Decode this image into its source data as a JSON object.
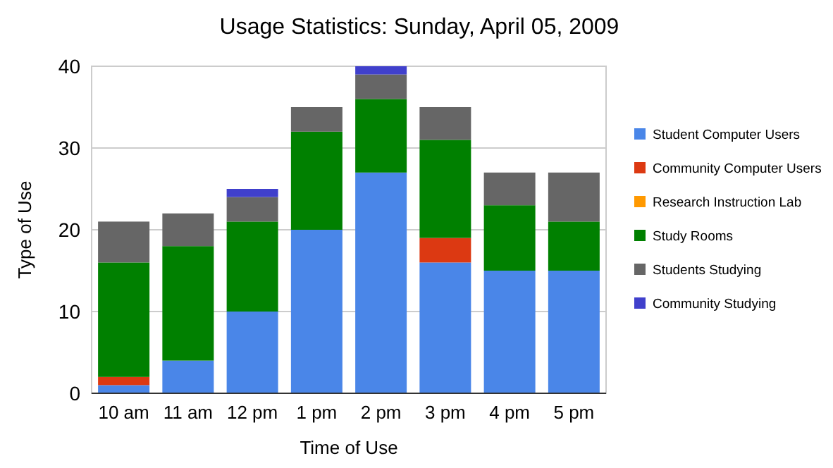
{
  "chart_data": {
    "type": "bar",
    "title": "Usage Statistics: Sunday, April 05, 2009",
    "xlabel": "Time of Use",
    "ylabel": "Type of Use",
    "categories": [
      "10 am",
      "11 am",
      "12 pm",
      "1 pm",
      "2 pm",
      "3 pm",
      "4 pm",
      "5 pm"
    ],
    "stacked": true,
    "ylim": [
      0,
      40
    ],
    "yticks": [
      0,
      10,
      20,
      30,
      40
    ],
    "grid": "y",
    "legend": "right",
    "series": [
      {
        "name": "Student Computer Users",
        "color": "#4a86e8",
        "values": [
          1,
          4,
          10,
          20,
          27,
          16,
          15,
          15
        ]
      },
      {
        "name": "Community Computer Users",
        "color": "#dc3912",
        "values": [
          1,
          0,
          0,
          0,
          0,
          3,
          0,
          0
        ]
      },
      {
        "name": "Research Instruction Lab",
        "color": "#ff9900",
        "values": [
          0,
          0,
          0,
          0,
          0,
          0,
          0,
          0
        ]
      },
      {
        "name": "Study Rooms",
        "color": "#008000",
        "values": [
          14,
          14,
          11,
          12,
          9,
          12,
          8,
          6
        ]
      },
      {
        "name": "Students Studying",
        "color": "#666666",
        "values": [
          5,
          4,
          3,
          3,
          3,
          4,
          4,
          6
        ]
      },
      {
        "name": "Community Studying",
        "color": "#4040cc",
        "values": [
          0,
          0,
          1,
          0,
          1,
          0,
          0,
          0
        ]
      }
    ]
  }
}
